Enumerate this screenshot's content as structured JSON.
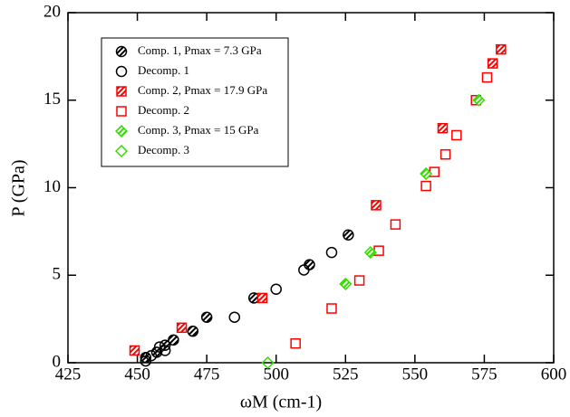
{
  "chart_data": {
    "type": "scatter",
    "x_label": "ωM (cm-1)",
    "y_label": "P (GPa)",
    "xlim": [
      425,
      600
    ],
    "ylim": [
      0,
      20
    ],
    "xticks": [
      425,
      450,
      475,
      500,
      525,
      550,
      575,
      600
    ],
    "yticks": [
      0,
      5,
      10,
      15,
      20
    ],
    "legend": "upper left",
    "series": [
      {
        "name": "Comp. 1, Pmax = 7.3 GPa",
        "color": "#000000",
        "marker": "circle",
        "style": "hatched",
        "x": [
          453,
          457,
          460,
          463,
          470,
          475,
          492,
          512,
          526
        ],
        "values": [
          0.3,
          0.6,
          1.0,
          1.3,
          1.8,
          2.6,
          3.7,
          5.6,
          7.3
        ]
      },
      {
        "name": "Decomp. 1",
        "color": "#000000",
        "marker": "circle",
        "style": "open",
        "x": [
          453,
          455,
          458,
          460,
          485,
          500,
          510,
          520
        ],
        "values": [
          0.1,
          0.4,
          0.9,
          0.7,
          2.6,
          4.2,
          5.3,
          6.3
        ]
      },
      {
        "name": "Comp. 2, Pmax = 17.9 GPa",
        "color": "#ff0000",
        "marker": "square",
        "style": "hatched",
        "x": [
          449,
          466,
          495,
          536,
          560,
          578,
          581
        ],
        "values": [
          0.7,
          2.0,
          3.7,
          9.0,
          13.4,
          17.1,
          17.9
        ]
      },
      {
        "name": "Decomp. 2",
        "color": "#ff0000",
        "marker": "square",
        "style": "open",
        "x": [
          507,
          520,
          530,
          537,
          543,
          554,
          557,
          561,
          565,
          572,
          576
        ],
        "values": [
          1.1,
          3.1,
          4.7,
          6.4,
          7.9,
          10.1,
          10.9,
          11.9,
          13.0,
          15.0,
          16.3
        ]
      },
      {
        "name": "Comp. 3, Pmax = 15 GPa",
        "color": "#33dd00",
        "marker": "diamond",
        "style": "hatched",
        "x": [
          525,
          534,
          554,
          573
        ],
        "values": [
          4.5,
          6.3,
          10.8,
          15.0
        ]
      },
      {
        "name": "Decomp. 3",
        "color": "#33dd00",
        "marker": "diamond",
        "style": "open",
        "x": [
          497
        ],
        "values": [
          0.0
        ]
      }
    ]
  }
}
